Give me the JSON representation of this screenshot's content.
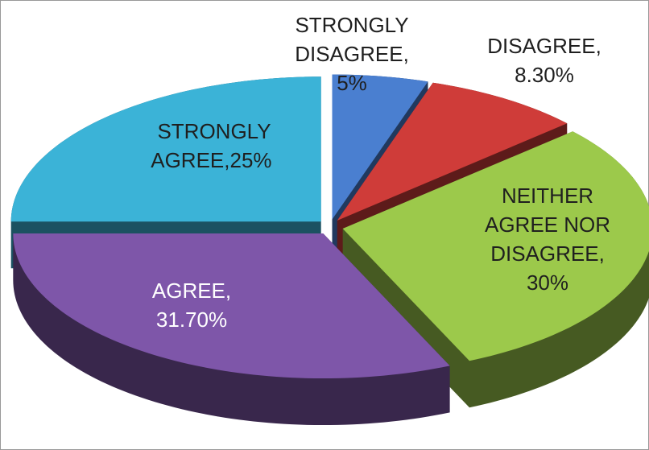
{
  "chart_data": {
    "type": "pie",
    "categories": [
      "STRONGLY DISAGREE,",
      "DISAGREE,",
      "NEITHER AGREE NOR DISAGREE,",
      "AGREE,",
      "STRONGLY AGREE,"
    ],
    "values": [
      5,
      8.3,
      30,
      31.7,
      25
    ],
    "value_labels": [
      "5%",
      "8.30%",
      "30%",
      "31.70%",
      "25%"
    ],
    "colors": [
      "#4a7fd0",
      "#cf3c39",
      "#9cc94b",
      "#7e56a9",
      "#3bb3d7"
    ]
  }
}
